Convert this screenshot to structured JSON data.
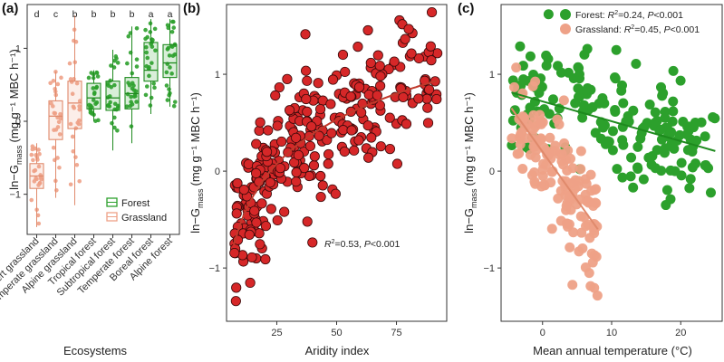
{
  "colors": {
    "forest": "#2ca02c",
    "forest_dark": "#1e8a1e",
    "grassland": "#eea187",
    "grassland_dark": "#e08a6c",
    "aridity_fill": "#d62728",
    "aridity_edge": "#3a0a0a",
    "aridity_line": "#c0392b"
  },
  "chart_data": [
    {
      "type": "box",
      "panel_label": "(a)",
      "title": "",
      "xlabel": "Ecosystems",
      "ylabel_main": "ln−G",
      "ylabel_sub": "mass",
      "ylabel_units": "(mg g⁻¹ MBC h⁻¹)",
      "ylim": [
        -1.55,
        1.6
      ],
      "yticks": [
        -1,
        0,
        1
      ],
      "ytick_labels": [
        "−1",
        "0",
        "1"
      ],
      "categories": [
        "Desert grassland",
        "Temperate grassland",
        "Alpine grassland",
        "Tropical forest",
        "Subtropical forest",
        "Temperate forest",
        "Boreal forest",
        "Alpine forest"
      ],
      "group": [
        "Grassland",
        "Grassland",
        "Grassland",
        "Forest",
        "Forest",
        "Forest",
        "Forest",
        "Forest"
      ],
      "letters": [
        "d",
        "c",
        "b",
        "b",
        "b",
        "b",
        "a",
        "a"
      ],
      "boxes": [
        {
          "min": -1.45,
          "q1": -0.92,
          "median": -0.75,
          "q3": -0.58,
          "max": -0.3
        },
        {
          "min": -1.05,
          "q1": -0.25,
          "median": 0.07,
          "q3": 0.28,
          "max": 0.68
        },
        {
          "min": -1.15,
          "q1": -0.1,
          "median": 0.25,
          "q3": 0.55,
          "max": 1.45
        },
        {
          "min": 0.0,
          "q1": 0.17,
          "median": 0.32,
          "q3": 0.52,
          "max": 0.7
        },
        {
          "min": -0.4,
          "q1": 0.15,
          "median": 0.32,
          "q3": 0.55,
          "max": 0.98
        },
        {
          "min": -0.3,
          "q1": 0.17,
          "median": 0.38,
          "q3": 0.6,
          "max": 1.3
        },
        {
          "min": 0.1,
          "q1": 0.55,
          "median": 0.7,
          "q3": 1.08,
          "max": 1.4
        },
        {
          "min": 0.2,
          "q1": 0.6,
          "median": 0.8,
          "q3": 1.05,
          "max": 1.4
        }
      ],
      "legend": {
        "position": "bottom-right",
        "entries": [
          "Forest",
          "Grassland"
        ]
      }
    },
    {
      "type": "scatter",
      "panel_label": "(b)",
      "title": "",
      "xlabel": "Aridity index",
      "ylabel_main": "ln−G",
      "ylabel_sub": "mass",
      "ylabel_units": "(mg g⁻¹ MBC h⁻¹)",
      "xlim": [
        4,
        96
      ],
      "ylim": [
        -1.55,
        1.72
      ],
      "xticks": [
        25,
        50,
        75
      ],
      "yticks": [
        -1,
        0,
        1
      ],
      "ytick_labels": [
        "−1",
        "0",
        "1"
      ],
      "fit": {
        "type": "log",
        "a": -2.05,
        "b": 0.66
      },
      "annotation": {
        "r2": "=0.53, ",
        "p": "<0.001"
      },
      "n_points": 300
    },
    {
      "type": "scatter",
      "panel_label": "(c)",
      "title": "",
      "xlabel": "Mean annual temperature (°C)",
      "ylabel_main": "ln−G",
      "ylabel_sub": "mass",
      "ylabel_units": "(mg g⁻¹ MBC h⁻¹)",
      "xlim": [
        -6,
        26
      ],
      "ylim": [
        -1.55,
        1.72
      ],
      "xticks": [
        0,
        10,
        20
      ],
      "yticks": [
        -1,
        0,
        1
      ],
      "ytick_labels": [
        "−1",
        "0",
        "1"
      ],
      "series": [
        {
          "name": "Forest",
          "fit": {
            "slope": -0.0205,
            "intercept": 0.72,
            "x_range": [
              -4.5,
              25
            ]
          },
          "n_points": 180,
          "stat_label": "Forest: ",
          "r2": "=0.24, ",
          "p": "<0.001"
        },
        {
          "name": "Grassland",
          "fit": {
            "slope": -0.1,
            "intercept": 0.2,
            "x_range": [
              -4.5,
              8
            ]
          },
          "n_points": 150,
          "stat_label": "Grassland: ",
          "r2": "=0.45, ",
          "p": "<0.001"
        }
      ],
      "legend": {
        "position": "top-right"
      }
    }
  ]
}
